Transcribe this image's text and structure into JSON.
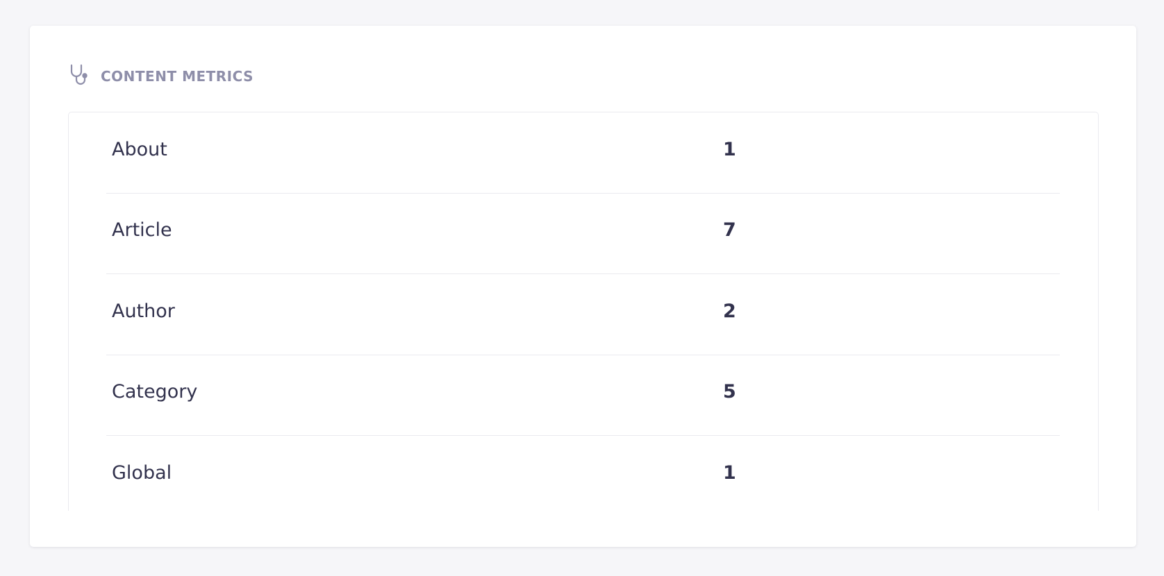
{
  "header": {
    "title": "CONTENT METRICS",
    "icon": "stethoscope-icon"
  },
  "rows": [
    {
      "label": "About",
      "value": "1"
    },
    {
      "label": "Article",
      "value": "7"
    },
    {
      "label": "Author",
      "value": "2"
    },
    {
      "label": "Category",
      "value": "5"
    },
    {
      "label": "Global",
      "value": "1"
    }
  ]
}
